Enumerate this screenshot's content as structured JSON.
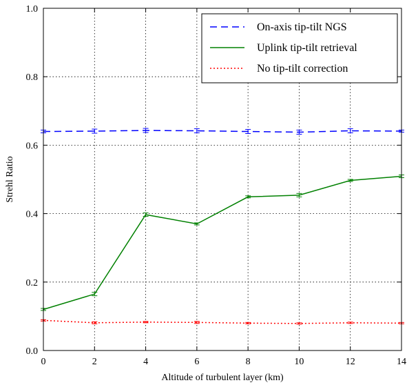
{
  "chart_data": {
    "type": "line",
    "title": "",
    "xlabel": "Altitude of turbulent layer (km)",
    "ylabel": "Strehl Ratio",
    "xlim": [
      0,
      14
    ],
    "ylim": [
      0.0,
      1.0
    ],
    "xticks": [
      "0",
      "2",
      "4",
      "6",
      "8",
      "10",
      "12",
      "14"
    ],
    "yticks": [
      "0.0",
      "0.2",
      "0.4",
      "0.6",
      "0.8",
      "1.0"
    ],
    "grid": true,
    "legend_position": "top-right",
    "series": [
      {
        "name": "On-axis tip-tilt NGS",
        "color": "#0000ff",
        "style": "dashed",
        "x": [
          0,
          2,
          4,
          6,
          8,
          10,
          12,
          14
        ],
        "y": [
          0.64,
          0.641,
          0.643,
          0.642,
          0.64,
          0.638,
          0.642,
          0.641
        ],
        "err": [
          0.004,
          0.006,
          0.006,
          0.006,
          0.006,
          0.006,
          0.006,
          0.003
        ]
      },
      {
        "name": "Uplink tip-tilt retrieval",
        "color": "#008000",
        "style": "solid",
        "x": [
          0,
          2,
          4,
          6,
          8,
          10,
          12,
          14
        ],
        "y": [
          0.12,
          0.165,
          0.397,
          0.37,
          0.449,
          0.454,
          0.497,
          0.509
        ],
        "err": [
          0.003,
          0.005,
          0.005,
          0.003,
          0.003,
          0.005,
          0.003,
          0.004
        ]
      },
      {
        "name": "No tip-tilt correction",
        "color": "#ff0000",
        "style": "dotted",
        "x": [
          0,
          2,
          4,
          6,
          8,
          10,
          12,
          14
        ],
        "y": [
          0.088,
          0.081,
          0.083,
          0.082,
          0.08,
          0.079,
          0.081,
          0.08
        ],
        "err": [
          0.002,
          0.003,
          0.002,
          0.003,
          0.002,
          0.002,
          0.002,
          0.002
        ]
      }
    ]
  }
}
